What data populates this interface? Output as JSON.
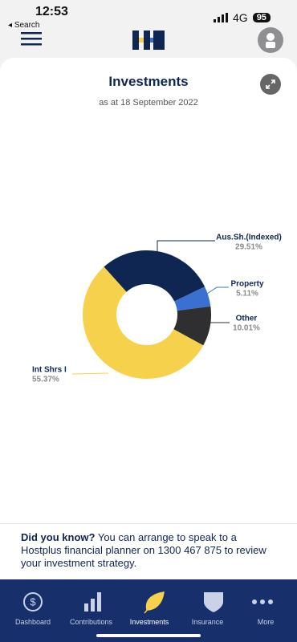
{
  "status_bar": {
    "time": "12:53",
    "back": "Search",
    "network": "4G",
    "battery": "95"
  },
  "card": {
    "title": "Investments",
    "subtitle": "as at 18 September 2022"
  },
  "chart_data": {
    "type": "pie",
    "categories": [
      "Aus.Sh.(Indexed)",
      "Property",
      "Other",
      "Int Shrs I"
    ],
    "values": [
      29.51,
      5.11,
      10.01,
      55.37
    ],
    "value_labels": [
      "29.51%",
      "5.11%",
      "10.01%",
      "55.37%"
    ],
    "colors": [
      "#0f2552",
      "#3a70cf",
      "#2f2f31",
      "#f6d24c"
    ]
  },
  "tip": {
    "lead": "Did you know?",
    "text": "You can arrange to speak to a Hostplus financial planner on 1300 467 875 to review your investment strategy."
  },
  "nav": [
    "Dashboard",
    "Contributions",
    "Investments",
    "Insurance",
    "More"
  ]
}
